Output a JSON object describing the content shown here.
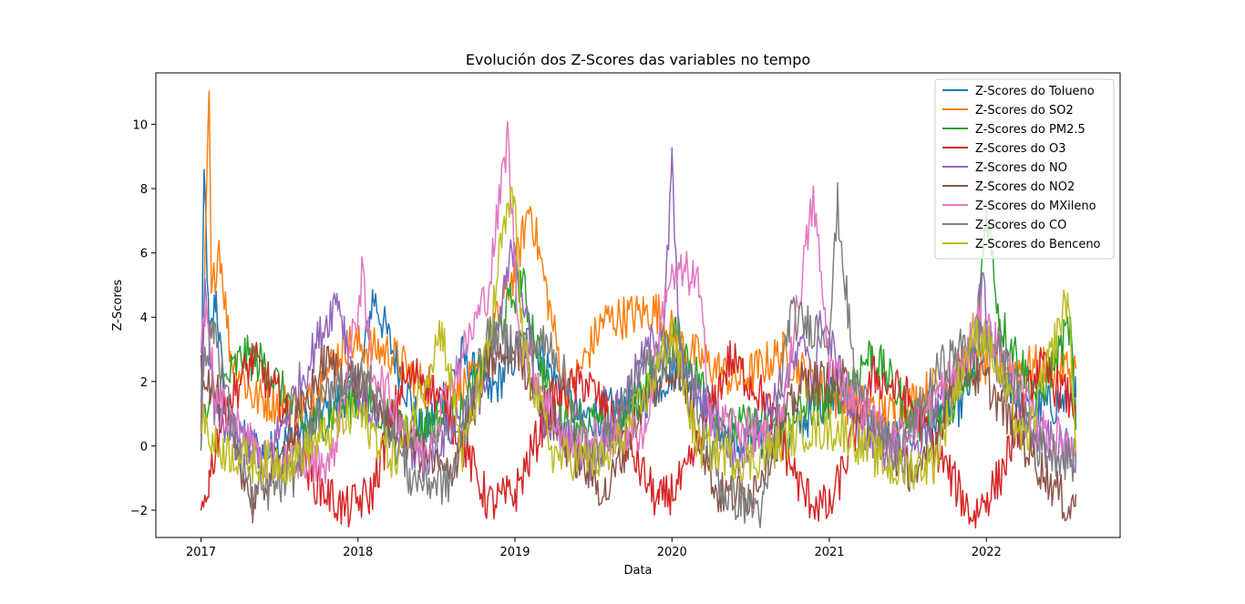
{
  "chart_data": {
    "type": "line",
    "title": "Evolución dos Z-Scores das variables no tempo",
    "xlabel": "Data",
    "ylabel": "Z-Scores",
    "x_range": [
      "2016-09-18",
      "2022-11-08"
    ],
    "ylim": [
      -2.85,
      11.6
    ],
    "x_ticks": [
      "2017",
      "2018",
      "2019",
      "2020",
      "2021",
      "2022"
    ],
    "y_ticks": [
      "-2",
      "0",
      "2",
      "4",
      "6",
      "8",
      "10"
    ],
    "grid": false,
    "legend_position": "top-right",
    "series": [
      {
        "name": "Z-Scores do Tolueno",
        "color": "#1f77b4",
        "points": [
          [
            "2017-01-01",
            0.2
          ],
          [
            "2017-01-05",
            5.4
          ],
          [
            "2017-01-08",
            7.9
          ],
          [
            "2017-01-12",
            7.2
          ],
          [
            "2017-01-20",
            3.0
          ],
          [
            "2017-02-05",
            4.7
          ],
          [
            "2017-03-01",
            0.5
          ],
          [
            "2017-06-01",
            -0.3
          ],
          [
            "2017-11-01",
            1.2
          ],
          [
            "2018-01-05",
            2.0
          ],
          [
            "2018-02-05",
            4.7
          ],
          [
            "2018-06-01",
            0.3
          ],
          [
            "2018-09-01",
            2.8
          ],
          [
            "2018-11-01",
            1.5
          ],
          [
            "2019-01-10",
            3.0
          ],
          [
            "2019-02-10",
            3.3
          ],
          [
            "2019-06-01",
            0.8
          ],
          [
            "2019-11-01",
            1.5
          ],
          [
            "2020-01-15",
            2.5
          ],
          [
            "2020-06-01",
            0.0
          ],
          [
            "2020-10-01",
            0.3
          ],
          [
            "2021-01-10",
            1.8
          ],
          [
            "2021-06-01",
            0.2
          ],
          [
            "2021-11-01",
            1.3
          ],
          [
            "2022-01-10",
            3.2
          ],
          [
            "2022-04-01",
            1.0
          ],
          [
            "2022-07-28",
            1.5
          ]
        ]
      },
      {
        "name": "Z-Scores do SO2",
        "color": "#ff7f0e",
        "points": [
          [
            "2017-01-01",
            0.0
          ],
          [
            "2017-01-20",
            11.0
          ],
          [
            "2017-01-25",
            4.5
          ],
          [
            "2017-02-12",
            6.4
          ],
          [
            "2017-03-10",
            2.9
          ],
          [
            "2017-05-01",
            1.5
          ],
          [
            "2017-09-01",
            1.2
          ],
          [
            "2017-12-01",
            3.2
          ],
          [
            "2018-03-15",
            2.9
          ],
          [
            "2018-07-01",
            1.5
          ],
          [
            "2018-10-01",
            2.0
          ],
          [
            "2019-01-01",
            5.5
          ],
          [
            "2019-02-05",
            7.5
          ],
          [
            "2019-05-01",
            1.5
          ],
          [
            "2019-07-25",
            3.9
          ],
          [
            "2019-11-25",
            4.2
          ],
          [
            "2020-02-01",
            3.0
          ],
          [
            "2020-06-01",
            2.0
          ],
          [
            "2020-09-15",
            2.9
          ],
          [
            "2021-01-01",
            1.5
          ],
          [
            "2021-06-01",
            1.0
          ],
          [
            "2021-11-15",
            2.5
          ],
          [
            "2022-02-01",
            2.5
          ],
          [
            "2022-07-28",
            2.4
          ]
        ]
      },
      {
        "name": "Z-Scores do PM2.5",
        "color": "#2ca02c",
        "points": [
          [
            "2017-01-01",
            0.5
          ],
          [
            "2017-02-01",
            1.5
          ],
          [
            "2017-04-10",
            2.8
          ],
          [
            "2017-06-01",
            2.5
          ],
          [
            "2017-09-01",
            0.5
          ],
          [
            "2018-01-01",
            1.5
          ],
          [
            "2018-05-01",
            0.5
          ],
          [
            "2018-09-01",
            1.0
          ],
          [
            "2019-01-15",
            5.2
          ],
          [
            "2019-04-01",
            1.0
          ],
          [
            "2019-09-01",
            0.5
          ],
          [
            "2020-01-10",
            3.5
          ],
          [
            "2020-05-01",
            0.5
          ],
          [
            "2020-09-01",
            0.8
          ],
          [
            "2021-01-15",
            1.5
          ],
          [
            "2021-04-10",
            2.9
          ],
          [
            "2021-08-01",
            0.5
          ],
          [
            "2021-12-01",
            2.0
          ],
          [
            "2022-01-01",
            7.4
          ],
          [
            "2022-02-01",
            3.9
          ],
          [
            "2022-05-01",
            1.5
          ],
          [
            "2022-07-15",
            3.7
          ],
          [
            "2022-07-28",
            0.5
          ]
        ]
      },
      {
        "name": "Z-Scores do O3",
        "color": "#d62728",
        "points": [
          [
            "2017-01-01",
            -2.2
          ],
          [
            "2017-01-20",
            -1.0
          ],
          [
            "2017-02-20",
            1.0
          ],
          [
            "2017-05-01",
            2.7
          ],
          [
            "2017-07-01",
            1.5
          ],
          [
            "2017-09-15",
            -1.0
          ],
          [
            "2017-12-01",
            -2.0
          ],
          [
            "2018-02-01",
            -1.5
          ],
          [
            "2018-04-15",
            2.0
          ],
          [
            "2018-06-01",
            2.2
          ],
          [
            "2018-08-01",
            1.0
          ],
          [
            "2018-11-01",
            -1.8
          ],
          [
            "2019-01-01",
            -1.5
          ],
          [
            "2019-04-01",
            1.5
          ],
          [
            "2019-06-15",
            2.0
          ],
          [
            "2019-09-01",
            0.5
          ],
          [
            "2019-12-01",
            -1.8
          ],
          [
            "2020-02-01",
            -1.0
          ],
          [
            "2020-05-15",
            2.7
          ],
          [
            "2020-08-01",
            1.5
          ],
          [
            "2020-11-01",
            -1.5
          ],
          [
            "2021-01-01",
            -2.0
          ],
          [
            "2021-04-15",
            2.2
          ],
          [
            "2021-07-01",
            1.5
          ],
          [
            "2021-12-01",
            -2.2
          ],
          [
            "2022-02-01",
            -1.0
          ],
          [
            "2022-05-01",
            2.5
          ],
          [
            "2022-07-28",
            1.2
          ]
        ]
      },
      {
        "name": "Z-Scores do NO",
        "color": "#9467bd",
        "points": [
          [
            "2017-01-01",
            0.5
          ],
          [
            "2017-01-10",
            4.7
          ],
          [
            "2017-02-01",
            1.0
          ],
          [
            "2017-06-01",
            -0.5
          ],
          [
            "2017-11-15",
            4.7
          ],
          [
            "2018-01-01",
            1.5
          ],
          [
            "2018-06-01",
            -0.5
          ],
          [
            "2018-11-01",
            2.0
          ],
          [
            "2018-12-30",
            6.4
          ],
          [
            "2019-03-01",
            1.0
          ],
          [
            "2019-07-01",
            -0.5
          ],
          [
            "2019-12-15",
            4.0
          ],
          [
            "2020-01-01",
            8.7
          ],
          [
            "2020-01-20",
            2.5
          ],
          [
            "2020-06-01",
            -0.5
          ],
          [
            "2020-11-10",
            3.2
          ],
          [
            "2020-11-25",
            2.0
          ],
          [
            "2020-12-15",
            4.1
          ],
          [
            "2021-03-01",
            0.5
          ],
          [
            "2021-07-01",
            -0.5
          ],
          [
            "2021-12-01",
            3.0
          ],
          [
            "2021-12-25",
            5.2
          ],
          [
            "2022-01-10",
            3.0
          ],
          [
            "2022-04-01",
            0.5
          ],
          [
            "2022-07-28",
            -0.3
          ]
        ]
      },
      {
        "name": "Z-Scores do NO2",
        "color": "#8c564b",
        "points": [
          [
            "2017-01-01",
            2.5
          ],
          [
            "2017-03-01",
            1.0
          ],
          [
            "2017-05-01",
            -1.8
          ],
          [
            "2017-07-01",
            -0.5
          ],
          [
            "2017-10-15",
            2.6
          ],
          [
            "2018-01-01",
            2.0
          ],
          [
            "2018-04-01",
            0.5
          ],
          [
            "2018-08-01",
            -1.0
          ],
          [
            "2018-11-01",
            2.5
          ],
          [
            "2019-01-01",
            3.0
          ],
          [
            "2019-05-01",
            0.0
          ],
          [
            "2019-08-01",
            -1.5
          ],
          [
            "2019-11-01",
            1.5
          ],
          [
            "2020-01-15",
            2.5
          ],
          [
            "2020-04-15",
            -1.5
          ],
          [
            "2020-07-01",
            -1.5
          ],
          [
            "2020-11-01",
            2.0
          ],
          [
            "2021-02-01",
            2.0
          ],
          [
            "2021-05-01",
            0.0
          ],
          [
            "2021-08-01",
            -1.0
          ],
          [
            "2021-11-01",
            2.4
          ],
          [
            "2022-01-01",
            2.0
          ],
          [
            "2022-04-01",
            0.0
          ],
          [
            "2022-07-15",
            -2.0
          ],
          [
            "2022-07-28",
            -1.5
          ]
        ]
      },
      {
        "name": "Z-Scores do MXileno",
        "color": "#e377c2",
        "points": [
          [
            "2017-01-01",
            3.0
          ],
          [
            "2017-01-15",
            4.7
          ],
          [
            "2017-02-01",
            1.5
          ],
          [
            "2017-06-01",
            -0.5
          ],
          [
            "2017-11-01",
            -0.5
          ],
          [
            "2018-01-01",
            4.3
          ],
          [
            "2018-01-10",
            5.3
          ],
          [
            "2018-02-01",
            2.5
          ],
          [
            "2018-06-01",
            -0.3
          ],
          [
            "2018-11-01",
            4.9
          ],
          [
            "2018-12-15",
            9.7
          ],
          [
            "2019-01-10",
            3.5
          ],
          [
            "2019-05-01",
            0.0
          ],
          [
            "2019-11-01",
            0.5
          ],
          [
            "2019-12-20",
            5.0
          ],
          [
            "2020-02-01",
            5.4
          ],
          [
            "2020-03-01",
            5.1
          ],
          [
            "2020-04-01",
            1.0
          ],
          [
            "2020-09-01",
            0.0
          ],
          [
            "2020-11-25",
            7.7
          ],
          [
            "2021-01-01",
            2.5
          ],
          [
            "2021-06-01",
            0.0
          ],
          [
            "2021-11-01",
            2.5
          ],
          [
            "2021-12-20",
            4.0
          ],
          [
            "2022-02-01",
            3.0
          ],
          [
            "2022-05-01",
            0.5
          ],
          [
            "2022-07-28",
            0.0
          ]
        ]
      },
      {
        "name": "Z-Scores do CO",
        "color": "#7f7f7f",
        "points": [
          [
            "2017-01-01",
            2.0
          ],
          [
            "2017-02-01",
            3.8
          ],
          [
            "2017-03-15",
            0.5
          ],
          [
            "2017-05-01",
            -1.6
          ],
          [
            "2017-08-01",
            -1.0
          ],
          [
            "2017-11-01",
            2.0
          ],
          [
            "2018-02-01",
            2.0
          ],
          [
            "2018-05-01",
            -1.0
          ],
          [
            "2018-08-01",
            -1.2
          ],
          [
            "2018-11-01",
            3.5
          ],
          [
            "2019-01-01",
            3.2
          ],
          [
            "2019-04-01",
            3.1
          ],
          [
            "2019-07-01",
            -0.5
          ],
          [
            "2019-11-01",
            2.5
          ],
          [
            "2020-01-15",
            3.0
          ],
          [
            "2020-05-01",
            -1.5
          ],
          [
            "2020-08-01",
            -2.0
          ],
          [
            "2020-10-01",
            4.0
          ],
          [
            "2021-01-01",
            3.5
          ],
          [
            "2021-01-20",
            7.5
          ],
          [
            "2021-03-01",
            2.0
          ],
          [
            "2021-06-01",
            -0.5
          ],
          [
            "2021-09-15",
            2.4
          ],
          [
            "2021-12-15",
            3.5
          ],
          [
            "2022-02-01",
            3.0
          ],
          [
            "2022-05-01",
            0.0
          ],
          [
            "2022-07-28",
            -0.5
          ]
        ]
      },
      {
        "name": "Z-Scores do Benceno",
        "color": "#bcbd22",
        "points": [
          [
            "2017-01-01",
            1.0
          ],
          [
            "2017-02-01",
            0.0
          ],
          [
            "2017-05-01",
            -0.5
          ],
          [
            "2017-08-01",
            -0.5
          ],
          [
            "2017-11-01",
            0.5
          ],
          [
            "2018-01-01",
            1.0
          ],
          [
            "2018-04-01",
            -0.5
          ],
          [
            "2018-07-15",
            3.7
          ],
          [
            "2018-09-01",
            -0.3
          ],
          [
            "2018-11-01",
            3.0
          ],
          [
            "2018-12-01",
            6.4
          ],
          [
            "2018-12-30",
            7.8
          ],
          [
            "2019-01-20",
            3.0
          ],
          [
            "2019-04-01",
            -0.3
          ],
          [
            "2019-08-01",
            -0.5
          ],
          [
            "2019-11-01",
            1.5
          ],
          [
            "2020-01-01",
            3.5
          ],
          [
            "2020-03-01",
            0.0
          ],
          [
            "2020-07-01",
            -0.5
          ],
          [
            "2020-11-01",
            0.5
          ],
          [
            "2021-02-01",
            0.5
          ],
          [
            "2021-06-01",
            -0.8
          ],
          [
            "2021-09-01",
            -0.5
          ],
          [
            "2021-12-01",
            3.5
          ],
          [
            "2022-01-01",
            3.3
          ],
          [
            "2022-04-01",
            0.0
          ],
          [
            "2022-07-10",
            4.7
          ],
          [
            "2022-07-28",
            -0.2
          ]
        ]
      }
    ]
  }
}
